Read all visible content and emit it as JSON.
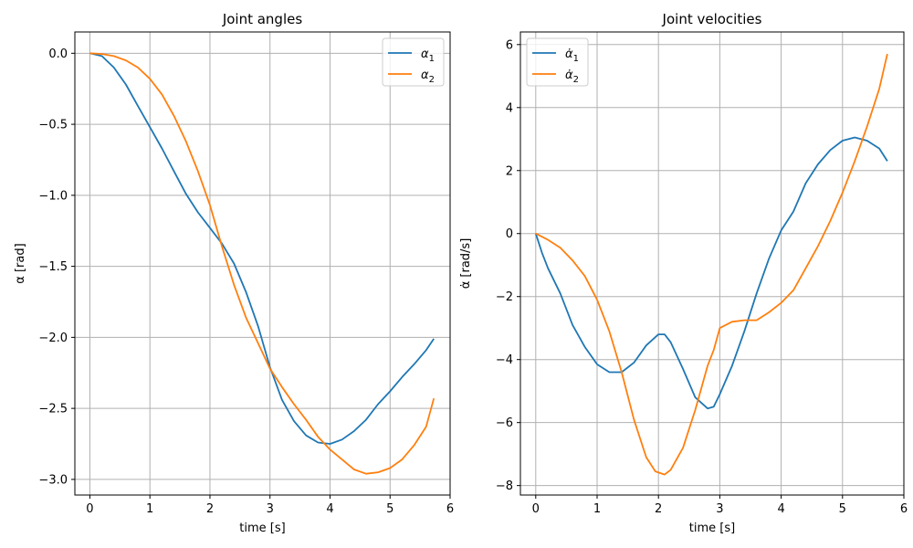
{
  "figure": {
    "background": "#ffffff",
    "grid_color": "#b0b0b0"
  },
  "chart_data": [
    {
      "type": "line",
      "title": "Joint angles",
      "xlabel": "time [s]",
      "ylabel": "α [rad]",
      "xlim": [
        -0.25,
        6.0
      ],
      "ylim": [
        -3.11,
        0.15
      ],
      "xticks": [
        0,
        1,
        2,
        3,
        4,
        5,
        6
      ],
      "yticks": [
        0.0,
        -0.5,
        -1.0,
        -1.5,
        -2.0,
        -2.5,
        -3.0
      ],
      "ytick_labels": [
        "0.0",
        "−0.5",
        "−1.0",
        "−1.5",
        "−2.0",
        "−2.5",
        "−3.0"
      ],
      "xtick_labels": [
        "0",
        "1",
        "2",
        "3",
        "4",
        "5",
        "6"
      ],
      "grid": true,
      "legend_position": "top-right",
      "series": [
        {
          "name": "α",
          "subscript": "1",
          "color": "#1f77b4",
          "x": [
            0,
            0.2,
            0.4,
            0.6,
            0.8,
            1.0,
            1.2,
            1.4,
            1.6,
            1.8,
            2.0,
            2.2,
            2.4,
            2.6,
            2.8,
            3.0,
            3.2,
            3.4,
            3.6,
            3.8,
            4.0,
            4.2,
            4.4,
            4.6,
            4.8,
            5.0,
            5.2,
            5.4,
            5.6,
            5.73
          ],
          "y": [
            0,
            -0.02,
            -0.1,
            -0.22,
            -0.37,
            -0.52,
            -0.67,
            -0.83,
            -0.99,
            -1.12,
            -1.23,
            -1.34,
            -1.48,
            -1.68,
            -1.92,
            -2.21,
            -2.44,
            -2.59,
            -2.69,
            -2.74,
            -2.75,
            -2.72,
            -2.66,
            -2.58,
            -2.47,
            -2.38,
            -2.28,
            -2.19,
            -2.09,
            -2.01
          ]
        },
        {
          "name": "α",
          "subscript": "2",
          "color": "#ff7f0e",
          "x": [
            0,
            0.2,
            0.4,
            0.6,
            0.8,
            1.0,
            1.2,
            1.4,
            1.6,
            1.8,
            2.0,
            2.2,
            2.4,
            2.6,
            2.8,
            3.0,
            3.2,
            3.4,
            3.6,
            3.8,
            4.0,
            4.2,
            4.4,
            4.6,
            4.8,
            5.0,
            5.2,
            5.4,
            5.6,
            5.73
          ],
          "y": [
            0,
            -0.005,
            -0.02,
            -0.05,
            -0.1,
            -0.18,
            -0.29,
            -0.44,
            -0.62,
            -0.83,
            -1.07,
            -1.36,
            -1.63,
            -1.86,
            -2.04,
            -2.22,
            -2.35,
            -2.47,
            -2.58,
            -2.7,
            -2.79,
            -2.86,
            -2.93,
            -2.96,
            -2.95,
            -2.92,
            -2.86,
            -2.76,
            -2.63,
            -2.43
          ]
        }
      ]
    },
    {
      "type": "line",
      "title": "Joint velocities",
      "xlabel": "time [s]",
      "ylabel": "α̇ [rad/s]",
      "xlim": [
        -0.25,
        6.0
      ],
      "ylim": [
        -8.3,
        6.4
      ],
      "xticks": [
        0,
        1,
        2,
        3,
        4,
        5,
        6
      ],
      "yticks": [
        6,
        4,
        2,
        0,
        -2,
        -4,
        -6,
        -8
      ],
      "ytick_labels": [
        "6",
        "4",
        "2",
        "0",
        "−2",
        "−4",
        "−6",
        "−8"
      ],
      "xtick_labels": [
        "0",
        "1",
        "2",
        "3",
        "4",
        "5",
        "6"
      ],
      "grid": true,
      "legend_position": "top-left",
      "series": [
        {
          "name": "α̇",
          "subscript": "1",
          "color": "#1f77b4",
          "x": [
            0,
            0.1,
            0.2,
            0.4,
            0.6,
            0.8,
            1.0,
            1.2,
            1.4,
            1.6,
            1.8,
            2.0,
            2.1,
            2.2,
            2.4,
            2.6,
            2.8,
            2.9,
            3.0,
            3.2,
            3.4,
            3.6,
            3.8,
            4.0,
            4.2,
            4.4,
            4.6,
            4.8,
            5.0,
            5.2,
            5.4,
            5.6,
            5.73
          ],
          "y": [
            0,
            -0.6,
            -1.1,
            -1.9,
            -2.9,
            -3.6,
            -4.15,
            -4.4,
            -4.4,
            -4.1,
            -3.55,
            -3.2,
            -3.2,
            -3.45,
            -4.3,
            -5.2,
            -5.55,
            -5.5,
            -5.1,
            -4.2,
            -3.1,
            -1.9,
            -0.8,
            0.1,
            0.7,
            1.6,
            2.2,
            2.65,
            2.95,
            3.05,
            2.95,
            2.7,
            2.3
          ]
        },
        {
          "name": "α̇",
          "subscript": "2",
          "color": "#ff7f0e",
          "x": [
            0,
            0.2,
            0.4,
            0.6,
            0.8,
            1.0,
            1.2,
            1.4,
            1.6,
            1.8,
            1.95,
            2.1,
            2.2,
            2.4,
            2.6,
            2.8,
            2.9,
            3.0,
            3.2,
            3.4,
            3.6,
            3.8,
            4.0,
            4.2,
            4.4,
            4.6,
            4.8,
            5.0,
            5.2,
            5.4,
            5.6,
            5.73
          ],
          "y": [
            0,
            -0.2,
            -0.45,
            -0.85,
            -1.35,
            -2.1,
            -3.1,
            -4.4,
            -5.9,
            -7.1,
            -7.55,
            -7.65,
            -7.5,
            -6.8,
            -5.6,
            -4.2,
            -3.7,
            -3.0,
            -2.8,
            -2.75,
            -2.75,
            -2.5,
            -2.2,
            -1.8,
            -1.1,
            -0.4,
            0.4,
            1.3,
            2.3,
            3.4,
            4.6,
            5.7
          ]
        }
      ]
    }
  ]
}
